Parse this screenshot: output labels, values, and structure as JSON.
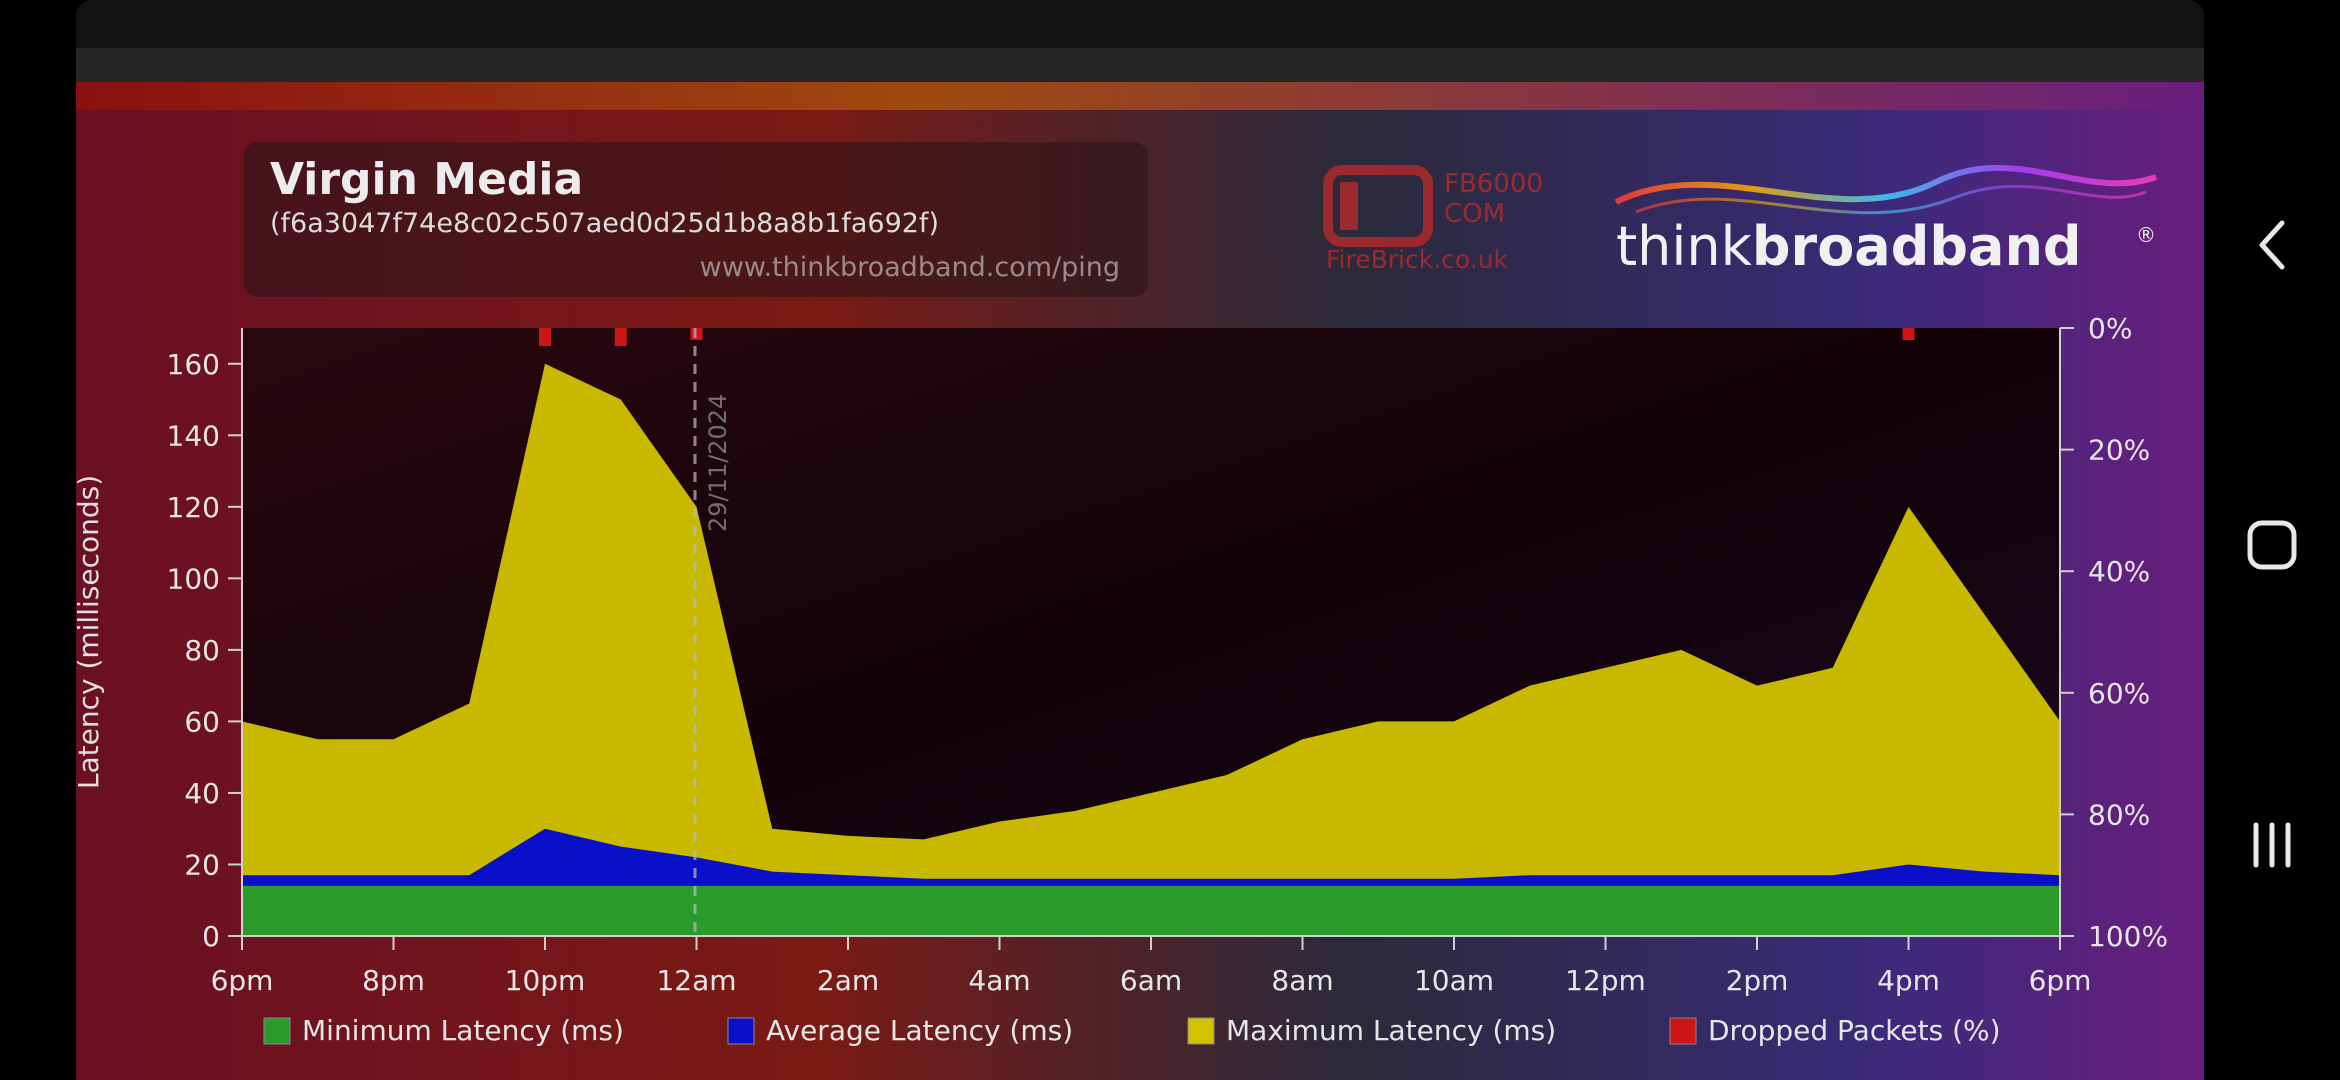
{
  "chart_data": {
    "type": "area",
    "title": "Virgin Media",
    "subtitle": "(f6a3047f74e8c02c507aed0d25d1b8a8b1fa692f)",
    "site_url": "www.thinkbroadband.com/ping",
    "date_marker": "29/11/2024",
    "ylabel": "Latency (milliseconds)",
    "ylim": [
      0,
      170
    ],
    "y_ticks": [
      "0",
      "20",
      "40",
      "60",
      "80",
      "100",
      "120",
      "140",
      "160"
    ],
    "y2_ticks": [
      "0%",
      "20%",
      "40%",
      "60%",
      "80%",
      "100%"
    ],
    "x_ticks": [
      "6pm",
      "8pm",
      "10pm",
      "12am",
      "2am",
      "4am",
      "6am",
      "8am",
      "10am",
      "12pm",
      "2pm",
      "4pm",
      "6pm"
    ],
    "legend": [
      {
        "label": "Minimum Latency (ms)",
        "color": "#2a9a2a"
      },
      {
        "label": "Average Latency (ms)",
        "color": "#0a10c8"
      },
      {
        "label": "Maximum Latency (ms)",
        "color": "#d2c200"
      },
      {
        "label": "Dropped Packets (%)",
        "color": "#cc1515"
      }
    ],
    "hours_from_6pm": [
      0,
      1,
      2,
      3,
      4,
      5,
      6,
      7,
      8,
      9,
      10,
      11,
      12,
      13,
      14,
      15,
      16,
      17,
      18,
      19,
      20,
      21,
      22,
      23,
      24
    ],
    "series": [
      {
        "name": "Minimum Latency (ms)",
        "values": [
          14,
          14,
          14,
          14,
          14,
          14,
          14,
          14,
          14,
          14,
          14,
          14,
          14,
          14,
          14,
          14,
          14,
          14,
          14,
          14,
          14,
          14,
          14,
          14,
          14
        ]
      },
      {
        "name": "Average Latency (ms)",
        "values": [
          17,
          17,
          17,
          17,
          30,
          25,
          22,
          18,
          17,
          16,
          16,
          16,
          16,
          16,
          16,
          16,
          16,
          17,
          17,
          17,
          17,
          17,
          20,
          18,
          17
        ]
      },
      {
        "name": "Maximum Latency (ms)",
        "values": [
          60,
          55,
          55,
          65,
          160,
          150,
          120,
          30,
          28,
          27,
          32,
          35,
          40,
          45,
          55,
          60,
          60,
          70,
          75,
          80,
          70,
          75,
          120,
          90,
          60
        ]
      },
      {
        "name": "Dropped Packets (%)",
        "values": [
          0,
          0,
          0,
          0,
          2,
          2,
          1,
          0,
          0,
          0,
          0,
          0,
          0,
          0,
          0,
          0,
          0,
          0,
          0,
          0,
          0,
          0,
          1,
          0,
          0
        ]
      }
    ]
  },
  "logos": {
    "firebrick_line1": "FB6000",
    "firebrick_line2": "COM",
    "firebrick_site": "FireBrick.co.uk",
    "tbb_think": "think",
    "tbb_broadband": "broadband"
  },
  "nav": {
    "back_icon": "back-chevron-icon",
    "home_icon": "home-square-icon",
    "recents_icon": "recents-lines-icon"
  }
}
